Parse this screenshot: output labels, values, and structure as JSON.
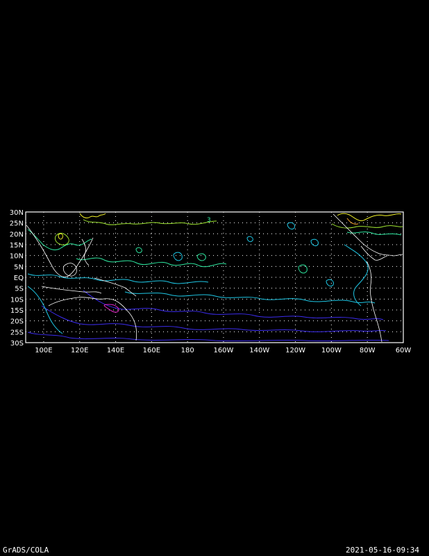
{
  "map": {
    "lat_labels": [
      "30N",
      "25N",
      "20N",
      "15N",
      "10N",
      "5N",
      "EQ",
      "5S",
      "10S",
      "15S",
      "20S",
      "25S",
      "30S"
    ],
    "lon_labels": [
      "100E",
      "120E",
      "140E",
      "160E",
      "180",
      "160W",
      "140W",
      "120W",
      "100W",
      "80W",
      "60W"
    ],
    "lon_range": [
      90,
      300
    ],
    "lat_range": [
      -30,
      30
    ],
    "contour_label": "3",
    "colors": {
      "background": "#000000",
      "frame": "#ffffff",
      "grid": "#ffffff",
      "coast": "#ffffff",
      "contour_levels": [
        "#3c2cf0",
        "#1ec8e6",
        "#2ee8a0",
        "#a0e632",
        "#f0f028",
        "#f0a028",
        "#e628c8"
      ]
    }
  },
  "footer": {
    "left": "GrADS/COLA",
    "right": "2021-05-16-09:34"
  }
}
